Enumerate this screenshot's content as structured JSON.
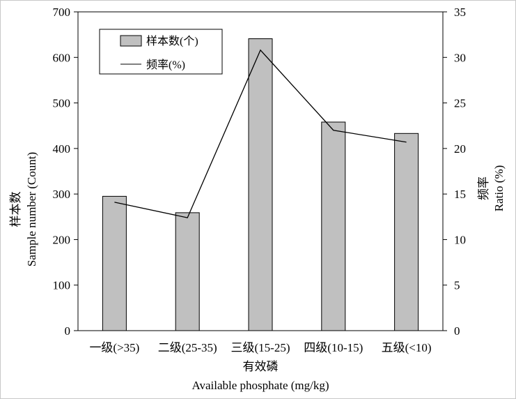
{
  "chart_data": {
    "type": "bar+line",
    "categories": [
      "一级(>35)",
      "二级(25-35)",
      "三级(15-25)",
      "四级(10-15)",
      "五级(<10)"
    ],
    "series": [
      {
        "name": "样本数(个)",
        "type": "bar",
        "axis": "left",
        "values": [
          295,
          259,
          641,
          458,
          433
        ]
      },
      {
        "name": "频率(%)",
        "type": "line",
        "axis": "right",
        "values": [
          14.1,
          12.4,
          30.8,
          22.0,
          20.7
        ]
      }
    ],
    "xlabel_cn": "有效磷",
    "xlabel_en": "Available  phosphate  (mg/kg)",
    "ylabel_left_cn": "样本数",
    "ylabel_left_en": "Sample  number  (Count)",
    "ylabel_right_cn": "频率",
    "ylabel_right_en": "Ratio  (%)",
    "ylim_left": [
      0,
      700
    ],
    "ylim_right": [
      0,
      35
    ],
    "left_ticks": [
      0,
      100,
      200,
      300,
      400,
      500,
      600,
      700
    ],
    "right_ticks": [
      0,
      5,
      10,
      15,
      20,
      25,
      30,
      35
    ],
    "legend": {
      "position": "top-left",
      "entries": [
        "样本数(个)",
        "频率(%)"
      ]
    },
    "grid": false,
    "colors": {
      "bar_fill": "#c0c0c0",
      "bar_stroke": "#000000",
      "line": "#000000",
      "frame_border": "#c8c8c8"
    }
  }
}
